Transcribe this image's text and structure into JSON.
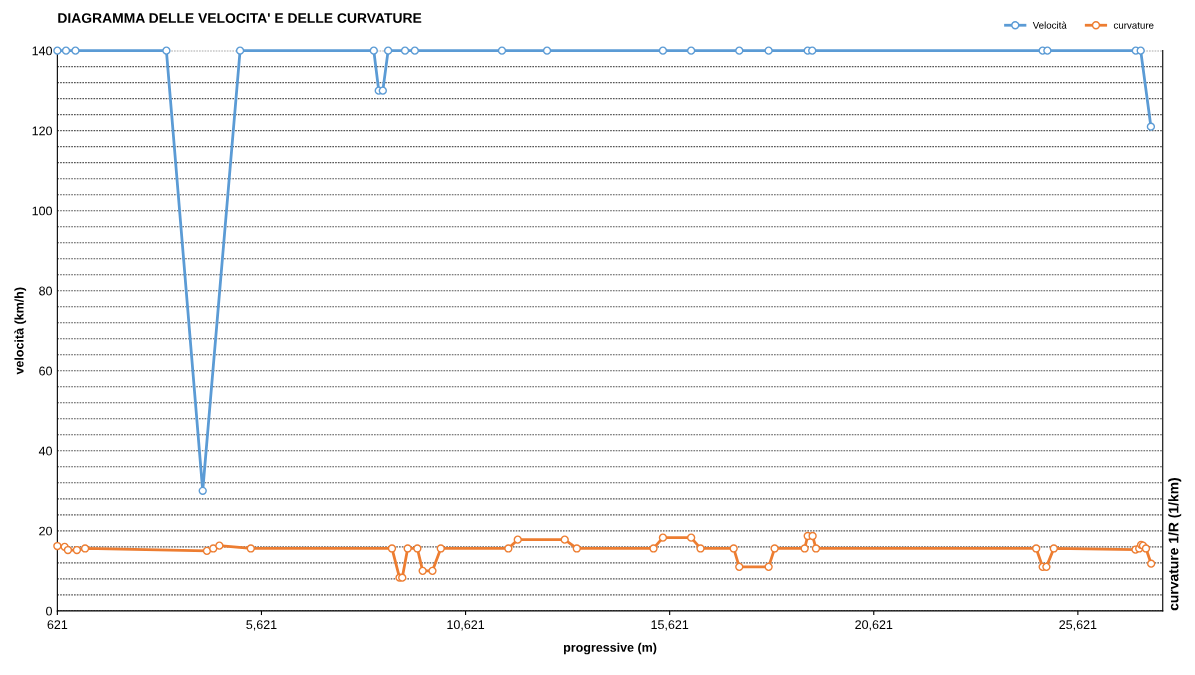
{
  "chart_data": {
    "type": "line",
    "title": "DIAGRAMMA DELLE VELOCITA' E DELLE CURVATURE",
    "xlabel": "progressive (m)",
    "ylabel": "velocità (km/h)",
    "y2label": "curvature 1/R (1/km)",
    "xlim": [
      621,
      27700
    ],
    "xticks": [
      {
        "value": 621,
        "label": "621"
      },
      {
        "value": 5621,
        "label": "5,621"
      },
      {
        "value": 10621,
        "label": "10,621"
      },
      {
        "value": 15621,
        "label": "15,621"
      },
      {
        "value": 20621,
        "label": "20,621"
      },
      {
        "value": 25621,
        "label": "25,621"
      }
    ],
    "ylim": [
      0,
      140
    ],
    "yticks": [
      0,
      {
        "value": 4,
        "label": null
      },
      {
        "value": 8,
        "label": null
      },
      {
        "value": 12,
        "label": null
      },
      {
        "value": 16,
        "label": null
      },
      20,
      {
        "value": 24,
        "label": null
      },
      {
        "value": 28,
        "label": null
      },
      {
        "value": 32,
        "label": null
      },
      {
        "value": 36,
        "label": null
      },
      40,
      {
        "value": 44,
        "label": null
      },
      {
        "value": 48,
        "label": null
      },
      {
        "value": 52,
        "label": null
      },
      {
        "value": 56,
        "label": null
      },
      60,
      {
        "value": 64,
        "label": null
      },
      {
        "value": 68,
        "label": null
      },
      {
        "value": 72,
        "label": null
      },
      {
        "value": 76,
        "label": null
      },
      80,
      {
        "value": 84,
        "label": null
      },
      {
        "value": 88,
        "label": null
      },
      {
        "value": 92,
        "label": null
      },
      {
        "value": 96,
        "label": null
      },
      100,
      {
        "value": 104,
        "label": null
      },
      {
        "value": 108,
        "label": null
      },
      {
        "value": 112,
        "label": null
      },
      {
        "value": 116,
        "label": null
      },
      120,
      {
        "value": 124,
        "label": null
      },
      {
        "value": 128,
        "label": null
      },
      {
        "value": 132,
        "label": null
      },
      {
        "value": 136,
        "label": null
      },
      140
    ],
    "grid": "y",
    "legend": "top right",
    "marker": "circle",
    "line_style": "solid",
    "series": [
      {
        "name": "Velocità",
        "color": "#5b9bd5",
        "x": [
          621,
          833,
          1064,
          3292,
          4182,
          5097,
          8373,
          8494,
          8594,
          8724,
          9138,
          9378,
          11513,
          12617,
          15456,
          16147,
          17326,
          18045,
          19003,
          19113,
          24758,
          24874,
          27040,
          27160,
          27410
        ],
        "values": [
          140,
          140,
          140,
          140,
          30,
          140,
          140,
          130,
          130,
          140,
          140,
          140,
          140,
          140,
          140,
          140,
          140,
          140,
          140,
          140,
          140,
          140,
          140,
          140,
          121
        ]
      },
      {
        "name": "curvature",
        "color": "#ed7d31",
        "x": [
          621,
          800,
          880,
          1100,
          1300,
          4285,
          4440,
          4590,
          5360,
          8818,
          9003,
          9070,
          9203,
          9440,
          9570,
          9810,
          10014,
          11669,
          11900,
          13050,
          13346,
          15225,
          15456,
          16147,
          16377,
          17189,
          17326,
          18045,
          18192,
          18928,
          19003,
          19123,
          19205,
          24600,
          24758,
          24850,
          25032,
          27032,
          27124,
          27170,
          27216,
          27289,
          27416
        ],
        "values": [
          16.2,
          16.0,
          15.2,
          15.2,
          15.6,
          15.0,
          15.6,
          16.3,
          15.6,
          15.6,
          8.3,
          8.3,
          15.6,
          15.6,
          10,
          10,
          15.6,
          15.6,
          17.8,
          17.8,
          15.6,
          15.6,
          18.3,
          18.3,
          15.6,
          15.6,
          11,
          11,
          15.6,
          15.6,
          18.7,
          18.7,
          15.6,
          15.6,
          11,
          11,
          15.6,
          15.3,
          15.6,
          16.5,
          16.3,
          15.6,
          11.8
        ]
      }
    ]
  }
}
